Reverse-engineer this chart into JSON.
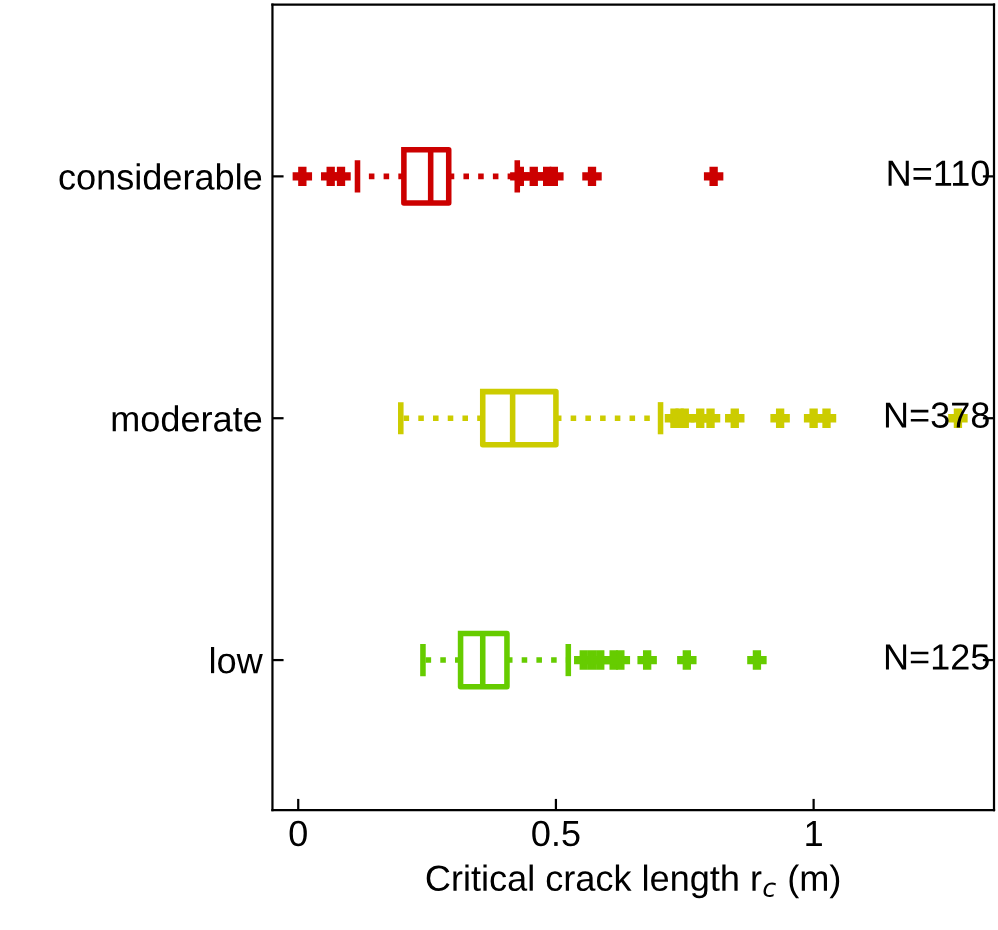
{
  "chart_data": {
    "type": "box",
    "orientation": "horizontal",
    "xlabel": "Critical crack length r$_{c}$ (m)",
    "categories": [
      "considerable",
      "moderate",
      "low"
    ],
    "colors": [
      "#cc0000",
      "#cccc00",
      "#66cc00"
    ],
    "boxes": [
      {
        "low": 0.115,
        "q1": 0.205,
        "median": 0.257,
        "q3": 0.292,
        "high": 0.425,
        "outliers": [
          0.008,
          0.063,
          0.083,
          0.43,
          0.457,
          0.483,
          0.496,
          0.57,
          0.806
        ]
      },
      {
        "low": 0.199,
        "q1": 0.358,
        "median": 0.416,
        "q3": 0.5,
        "high": 0.703,
        "outliers": [
          0.73,
          0.74,
          0.75,
          0.78,
          0.8,
          0.847,
          0.935,
          1.0,
          1.025,
          1.28
        ]
      },
      {
        "low": 0.242,
        "q1": 0.315,
        "median": 0.358,
        "q3": 0.405,
        "high": 0.524,
        "outliers": [
          0.554,
          0.57,
          0.586,
          0.612,
          0.625,
          0.677,
          0.754,
          0.89
        ]
      }
    ],
    "annotations": [
      "N=110",
      "N=378",
      "N=125"
    ],
    "xlim": [
      -0.05,
      1.35
    ],
    "xticks": [
      0,
      0.5,
      1
    ],
    "line_style": "dotted",
    "marker": "cross",
    "grid": false,
    "legend": false
  }
}
